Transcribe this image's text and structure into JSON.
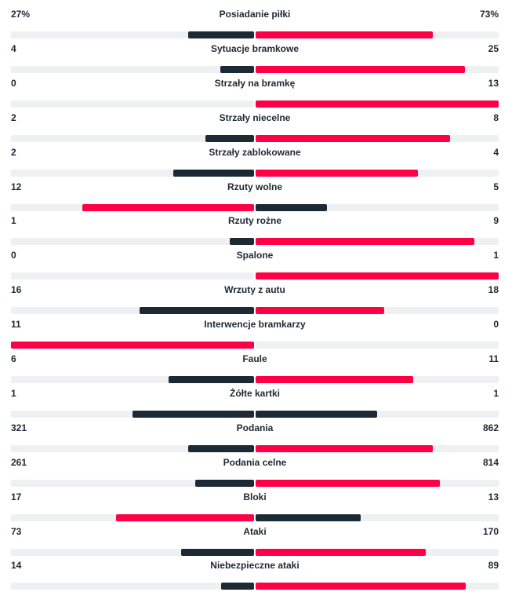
{
  "colors": {
    "winner": "#ff0046",
    "loser": "#1c2a35",
    "track": "#eef0f2"
  },
  "stats": [
    {
      "label": "Posiadanie piłki",
      "home": "27%",
      "away": "73%",
      "home_value": 27,
      "away_value": 73
    },
    {
      "label": "Sytuacje bramkowe",
      "home": "4",
      "away": "25",
      "home_value": 4,
      "away_value": 25
    },
    {
      "label": "Strzały na bramkę",
      "home": "0",
      "away": "13",
      "home_value": 0,
      "away_value": 13
    },
    {
      "label": "Strzały niecelne",
      "home": "2",
      "away": "8",
      "home_value": 2,
      "away_value": 8
    },
    {
      "label": "Strzały zablokowane",
      "home": "2",
      "away": "4",
      "home_value": 2,
      "away_value": 4
    },
    {
      "label": "Rzuty wolne",
      "home": "12",
      "away": "5",
      "home_value": 12,
      "away_value": 5
    },
    {
      "label": "Rzuty rożne",
      "home": "1",
      "away": "9",
      "home_value": 1,
      "away_value": 9
    },
    {
      "label": "Spalone",
      "home": "0",
      "away": "1",
      "home_value": 0,
      "away_value": 1
    },
    {
      "label": "Wrzuty z autu",
      "home": "16",
      "away": "18",
      "home_value": 16,
      "away_value": 18
    },
    {
      "label": "Interwencje bramkarzy",
      "home": "11",
      "away": "0",
      "home_value": 11,
      "away_value": 0
    },
    {
      "label": "Faule",
      "home": "6",
      "away": "11",
      "home_value": 6,
      "away_value": 11
    },
    {
      "label": "Żółte kartki",
      "home": "1",
      "away": "1",
      "home_value": 1,
      "away_value": 1
    },
    {
      "label": "Podania",
      "home": "321",
      "away": "862",
      "home_value": 321,
      "away_value": 862
    },
    {
      "label": "Podania celne",
      "home": "261",
      "away": "814",
      "home_value": 261,
      "away_value": 814
    },
    {
      "label": "Bloki",
      "home": "17",
      "away": "13",
      "home_value": 17,
      "away_value": 13
    },
    {
      "label": "Ataki",
      "home": "73",
      "away": "170",
      "home_value": 73,
      "away_value": 170
    },
    {
      "label": "Niebezpieczne ataki",
      "home": "14",
      "away": "89",
      "home_value": 14,
      "away_value": 89
    }
  ]
}
